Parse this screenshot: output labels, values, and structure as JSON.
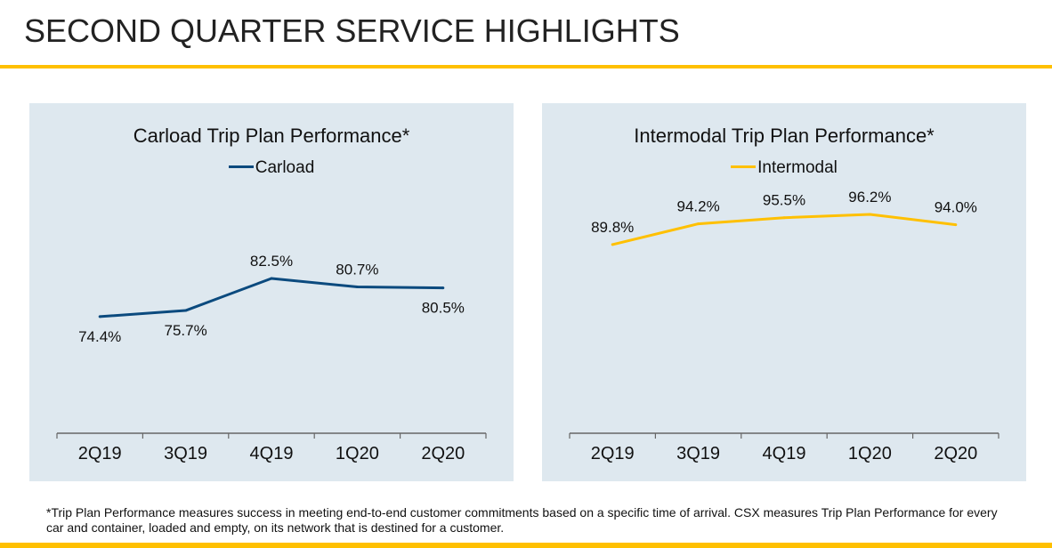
{
  "page": {
    "title": "SECOND QUARTER SERVICE HIGHLIGHTS",
    "footnote": "*Trip Plan Performance measures success in meeting end-to-end customer commitments based on a specific time of arrival. CSX measures Trip Plan Performance for every car and container, loaded and empty, on its network that is destined for a customer.",
    "colors": {
      "accent": "#FFC000",
      "panel_bg": "#DEE8EF",
      "carload": "#0B4A7E",
      "intermodal": "#FFC000"
    }
  },
  "chart_data": [
    {
      "type": "line",
      "title": "Carload Trip Plan Performance*",
      "xlabel": "",
      "ylabel": "",
      "categories": [
        "2Q19",
        "3Q19",
        "4Q19",
        "1Q20",
        "2Q20"
      ],
      "series": [
        {
          "name": "Carload",
          "color": "#0B4A7E",
          "values": [
            74.4,
            75.7,
            82.5,
            80.7,
            80.5
          ],
          "labels": [
            "74.4%",
            "75.7%",
            "82.5%",
            "80.7%",
            "80.5%"
          ],
          "label_positions": [
            "below",
            "below",
            "above",
            "above",
            "below"
          ]
        }
      ],
      "legend": "top-center",
      "grid": false
    },
    {
      "type": "line",
      "title": "Intermodal Trip Plan Performance*",
      "xlabel": "",
      "ylabel": "",
      "categories": [
        "2Q19",
        "3Q19",
        "4Q19",
        "1Q20",
        "2Q20"
      ],
      "series": [
        {
          "name": "Intermodal",
          "color": "#FFC000",
          "values": [
            89.8,
            94.2,
            95.5,
            96.2,
            94.0
          ],
          "labels": [
            "89.8%",
            "94.2%",
            "95.5%",
            "96.2%",
            "94.0%"
          ],
          "label_positions": [
            "above",
            "above",
            "above",
            "above",
            "above"
          ]
        }
      ],
      "legend": "top-center",
      "grid": false
    }
  ]
}
